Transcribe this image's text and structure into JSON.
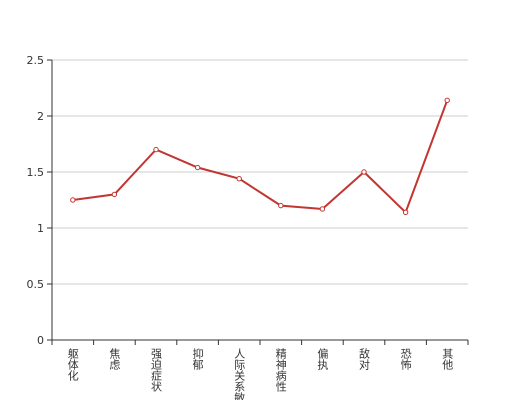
{
  "chart_data": {
    "type": "line",
    "categories": [
      "躯体化",
      "焦虑",
      "强迫症状",
      "抑郁",
      "人际关系敏感",
      "精神病性",
      "偏执",
      "敌对",
      "恐怖",
      "其他"
    ],
    "values": [
      1.25,
      1.3,
      1.7,
      1.54,
      1.44,
      1.2,
      1.17,
      1.5,
      1.14,
      2.14
    ],
    "color": "#c23531",
    "ylim": [
      0,
      2.5
    ],
    "yticks": [
      0,
      0.5,
      1,
      1.5,
      2,
      2.5
    ],
    "grid": true
  }
}
